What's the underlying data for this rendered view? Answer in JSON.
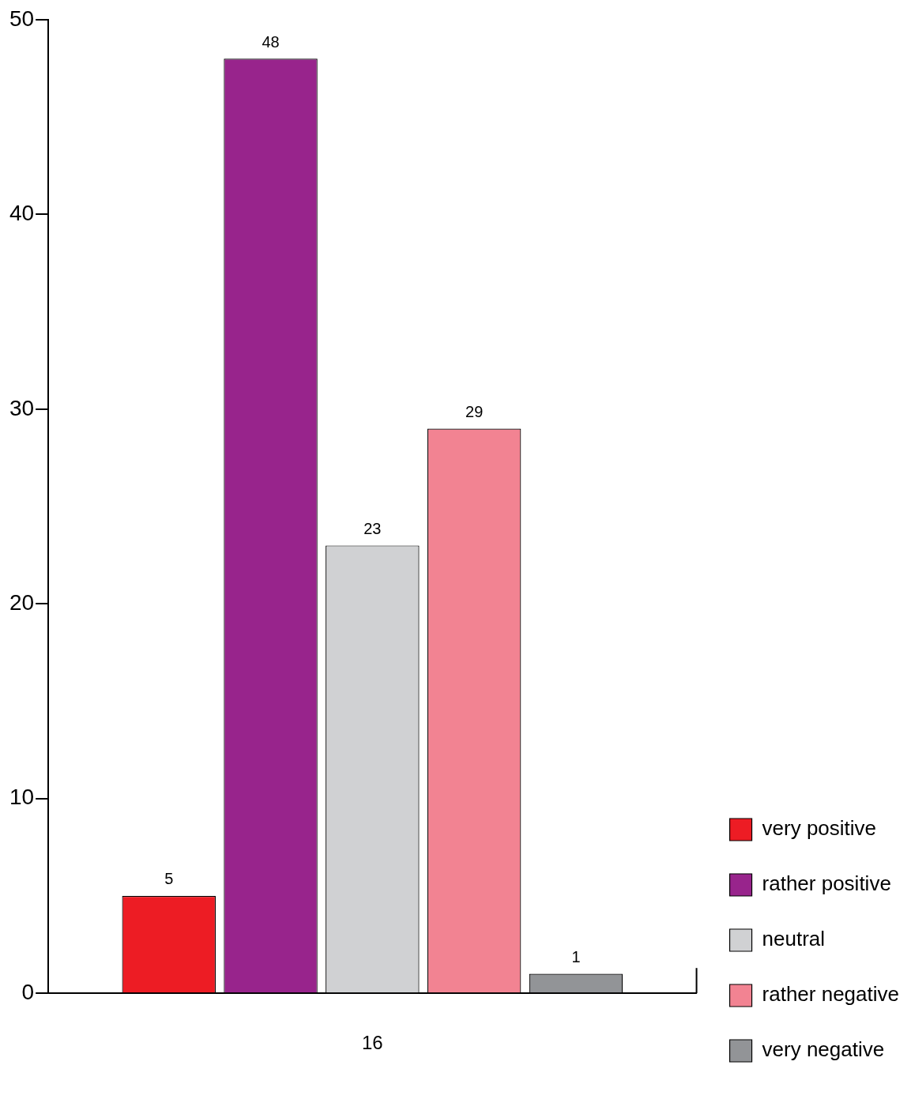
{
  "chart_data": {
    "type": "bar",
    "categories": [
      "16"
    ],
    "series": [
      {
        "name": "very positive",
        "color": "#ed1c24",
        "values": [
          5
        ]
      },
      {
        "name": "rather positive",
        "color": "#98248c",
        "values": [
          48
        ]
      },
      {
        "name": "neutral",
        "color": "#d0d1d3",
        "values": [
          23
        ]
      },
      {
        "name": "rather negative",
        "color": "#f28392",
        "values": [
          29
        ]
      },
      {
        "name": "very negative",
        "color": "#929497",
        "values": [
          1
        ]
      }
    ],
    "ylim": [
      0,
      50
    ],
    "yticks": [
      0,
      10,
      20,
      30,
      40,
      50
    ],
    "grid": false,
    "legend": "bottom right",
    "data_labels": true
  }
}
